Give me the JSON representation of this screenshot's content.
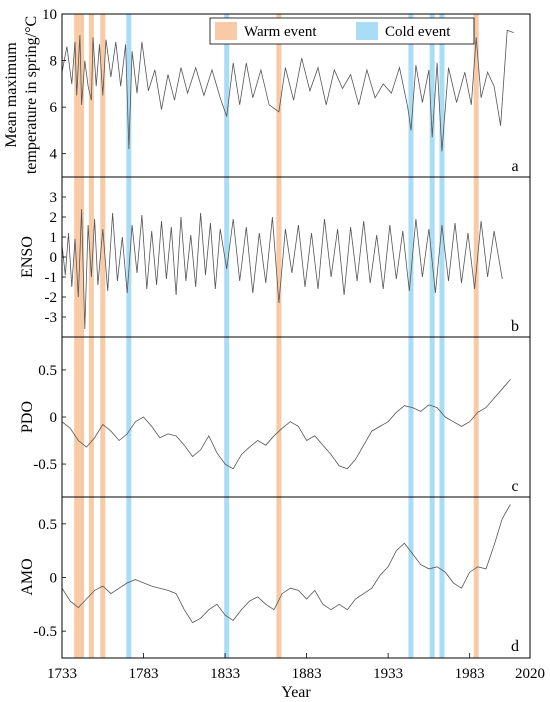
{
  "figure": {
    "xlabel": "Year",
    "x_ticks": [
      "1733",
      "1783",
      "1833",
      "1883",
      "1933",
      "1983",
      "2020"
    ],
    "x_range": [
      1733,
      2020
    ]
  },
  "legend": {
    "warm_label": "Warm event",
    "cold_label": "Cold event",
    "warm_color": "#f8cba6",
    "cold_color": "#a9dcf5"
  },
  "events": {
    "warm": [
      1742,
      1745,
      1751,
      1758,
      1866,
      1987
    ],
    "cold": [
      1774,
      1834,
      1947,
      1960,
      1966
    ]
  },
  "line_color": "#555555",
  "panels": [
    {
      "letter": "a",
      "ylabel_line1": "Mean maximum",
      "ylabel_line2": "temperature in spring/°C",
      "yticks": [
        "10",
        "8",
        "6",
        "4"
      ]
    },
    {
      "letter": "b",
      "ylabel_line1": "ENSO",
      "ylabel_line2": "",
      "yticks": [
        "3",
        "2",
        "1",
        "0",
        "-1",
        "-2",
        "-3"
      ]
    },
    {
      "letter": "c",
      "ylabel_line1": "PDO",
      "ylabel_line2": "",
      "yticks": [
        "0.5",
        "0",
        "-0.5"
      ]
    },
    {
      "letter": "d",
      "ylabel_line1": "AMO",
      "ylabel_line2": "",
      "yticks": [
        "0.5",
        "0",
        "-0.5"
      ]
    }
  ],
  "chart_data": [
    {
      "type": "line",
      "ylabel": "Mean maximum temperature in spring/°C",
      "ylim": [
        3,
        10
      ],
      "x": [
        1733,
        1736,
        1739,
        1741,
        1742,
        1744,
        1745,
        1747,
        1749,
        1751,
        1752,
        1754,
        1756,
        1758,
        1760,
        1763,
        1766,
        1769,
        1772,
        1774,
        1776,
        1779,
        1782,
        1786,
        1790,
        1794,
        1798,
        1802,
        1806,
        1810,
        1815,
        1820,
        1825,
        1830,
        1834,
        1838,
        1842,
        1846,
        1850,
        1855,
        1860,
        1866,
        1870,
        1875,
        1880,
        1885,
        1890,
        1895,
        1900,
        1905,
        1910,
        1915,
        1920,
        1925,
        1930,
        1935,
        1940,
        1945,
        1947,
        1950,
        1954,
        1958,
        1960,
        1963,
        1966,
        1970,
        1975,
        1980,
        1984,
        1987,
        1990,
        1994,
        1998,
        2002,
        2006,
        2010
      ],
      "values": [
        7.5,
        8.6,
        7.0,
        8.8,
        6.5,
        9.1,
        6.1,
        8.0,
        6.9,
        6.3,
        9.0,
        6.9,
        8.7,
        6.5,
        8.9,
        7.3,
        8.8,
        6.9,
        8.7,
        4.2,
        8.4,
        6.6,
        8.8,
        6.7,
        7.6,
        5.9,
        7.4,
        6.3,
        7.7,
        6.6,
        7.7,
        6.5,
        7.6,
        6.4,
        5.6,
        7.9,
        6.1,
        7.9,
        6.4,
        7.6,
        6.1,
        5.8,
        7.7,
        6.3,
        8.1,
        6.7,
        7.7,
        6.1,
        7.6,
        6.8,
        7.4,
        6.1,
        7.6,
        6.4,
        7.0,
        6.6,
        7.7,
        6.0,
        5.0,
        7.8,
        6.2,
        7.6,
        4.7,
        7.9,
        4.1,
        7.7,
        6.2,
        7.5,
        6.1,
        9.0,
        6.4,
        7.5,
        6.9,
        5.2,
        9.3,
        9.2
      ]
    },
    {
      "type": "line",
      "ylabel": "ENSO",
      "ylim": [
        -4,
        4
      ],
      "x": [
        1733,
        1735,
        1737,
        1739,
        1741,
        1743,
        1745,
        1747,
        1749,
        1751,
        1753,
        1755,
        1758,
        1761,
        1764,
        1767,
        1770,
        1773,
        1776,
        1779,
        1782,
        1785,
        1788,
        1791,
        1794,
        1797,
        1800,
        1803,
        1806,
        1809,
        1812,
        1815,
        1818,
        1821,
        1824,
        1827,
        1830,
        1834,
        1838,
        1842,
        1846,
        1850,
        1854,
        1858,
        1862,
        1866,
        1870,
        1874,
        1878,
        1882,
        1886,
        1890,
        1894,
        1898,
        1902,
        1906,
        1910,
        1914,
        1918,
        1922,
        1926,
        1930,
        1934,
        1938,
        1942,
        1946,
        1950,
        1954,
        1958,
        1962,
        1966,
        1970,
        1974,
        1978,
        1982,
        1986,
        1990,
        1994,
        1998,
        2003
      ],
      "values": [
        0.6,
        -0.9,
        1.2,
        -1.5,
        0.9,
        -2.0,
        2.4,
        -3.6,
        1.6,
        -1.0,
        1.9,
        -1.4,
        1.4,
        -1.7,
        2.2,
        -1.2,
        1.0,
        -1.8,
        1.6,
        -0.8,
        2.1,
        -1.6,
        1.3,
        -1.4,
        1.8,
        -1.1,
        1.5,
        -1.9,
        2.0,
        -1.2,
        1.1,
        -1.5,
        2.2,
        -0.9,
        1.7,
        -1.6,
        1.4,
        -0.6,
        1.9,
        -1.2,
        1.5,
        -1.8,
        1.2,
        -1.3,
        2.0,
        -2.3,
        1.4,
        -0.8,
        1.6,
        -1.5,
        1.2,
        -1.6,
        1.9,
        -1.0,
        1.4,
        -1.9,
        1.5,
        -1.2,
        1.8,
        -1.3,
        1.1,
        -1.6,
        1.6,
        -1.1,
        1.3,
        -1.7,
        1.9,
        -1.0,
        1.4,
        -1.8,
        1.6,
        -1.2,
        1.7,
        -1.3,
        1.2,
        -1.6,
        1.8,
        -1.0,
        1.3,
        -1.1
      ]
    },
    {
      "type": "line",
      "ylabel": "PDO",
      "ylim": [
        -0.85,
        0.85
      ],
      "x": [
        1733,
        1738,
        1743,
        1748,
        1753,
        1758,
        1763,
        1768,
        1773,
        1778,
        1783,
        1788,
        1793,
        1798,
        1803,
        1808,
        1813,
        1818,
        1823,
        1828,
        1833,
        1838,
        1843,
        1848,
        1853,
        1858,
        1863,
        1868,
        1873,
        1878,
        1883,
        1888,
        1893,
        1898,
        1903,
        1908,
        1913,
        1918,
        1923,
        1928,
        1933,
        1938,
        1943,
        1948,
        1953,
        1958,
        1963,
        1968,
        1973,
        1978,
        1983,
        1988,
        1993,
        1998,
        2003,
        2008
      ],
      "values": [
        -0.05,
        -0.12,
        -0.25,
        -0.32,
        -0.22,
        -0.08,
        -0.15,
        -0.25,
        -0.18,
        -0.05,
        0.0,
        -0.1,
        -0.22,
        -0.18,
        -0.2,
        -0.3,
        -0.42,
        -0.35,
        -0.2,
        -0.38,
        -0.5,
        -0.55,
        -0.4,
        -0.32,
        -0.25,
        -0.3,
        -0.2,
        -0.12,
        -0.05,
        -0.1,
        -0.25,
        -0.2,
        -0.3,
        -0.4,
        -0.52,
        -0.55,
        -0.45,
        -0.3,
        -0.15,
        -0.1,
        -0.05,
        0.05,
        0.12,
        0.1,
        0.06,
        0.13,
        0.1,
        0.0,
        -0.05,
        -0.1,
        -0.05,
        0.05,
        0.1,
        0.2,
        0.3,
        0.4
      ]
    },
    {
      "type": "line",
      "ylabel": "AMO",
      "ylim": [
        -0.75,
        0.75
      ],
      "x": [
        1733,
        1738,
        1743,
        1748,
        1753,
        1758,
        1763,
        1768,
        1773,
        1778,
        1783,
        1788,
        1793,
        1798,
        1803,
        1808,
        1813,
        1818,
        1823,
        1828,
        1833,
        1838,
        1843,
        1848,
        1853,
        1858,
        1863,
        1868,
        1873,
        1878,
        1883,
        1888,
        1893,
        1898,
        1903,
        1908,
        1913,
        1918,
        1923,
        1928,
        1933,
        1938,
        1943,
        1948,
        1953,
        1958,
        1963,
        1968,
        1973,
        1978,
        1983,
        1988,
        1993,
        1998,
        2003,
        2008
      ],
      "values": [
        -0.1,
        -0.22,
        -0.28,
        -0.2,
        -0.12,
        -0.08,
        -0.15,
        -0.1,
        -0.05,
        -0.02,
        -0.05,
        -0.08,
        -0.1,
        -0.12,
        -0.15,
        -0.3,
        -0.42,
        -0.38,
        -0.3,
        -0.25,
        -0.35,
        -0.4,
        -0.3,
        -0.22,
        -0.18,
        -0.25,
        -0.3,
        -0.15,
        -0.1,
        -0.12,
        -0.2,
        -0.12,
        -0.25,
        -0.3,
        -0.25,
        -0.3,
        -0.2,
        -0.15,
        -0.1,
        0.02,
        0.1,
        0.25,
        0.32,
        0.22,
        0.12,
        0.08,
        0.1,
        0.05,
        -0.05,
        -0.1,
        0.05,
        0.1,
        0.08,
        0.3,
        0.55,
        0.68
      ]
    }
  ]
}
